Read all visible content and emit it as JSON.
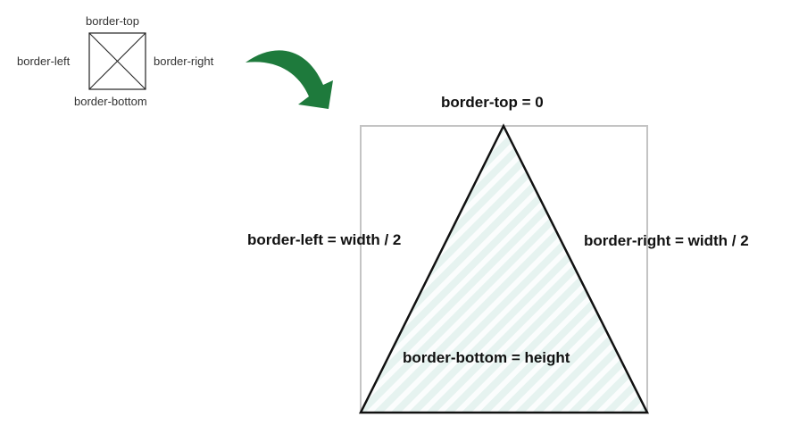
{
  "small_diagram": {
    "top_label": "border-top",
    "left_label": "border-left",
    "right_label": "border-right",
    "bottom_label": "border-bottom"
  },
  "arrow": {
    "color": "#1e7a3c"
  },
  "triangle_diagram": {
    "top_label": "border-top = 0",
    "left_label": "border-left = width / 2",
    "right_label": "border-right = width / 2",
    "bottom_label": "border-bottom = height",
    "fill_color": "#e6f3f0",
    "stripe_color": "#ffffff",
    "box_border_color": "#c4c4c4"
  }
}
